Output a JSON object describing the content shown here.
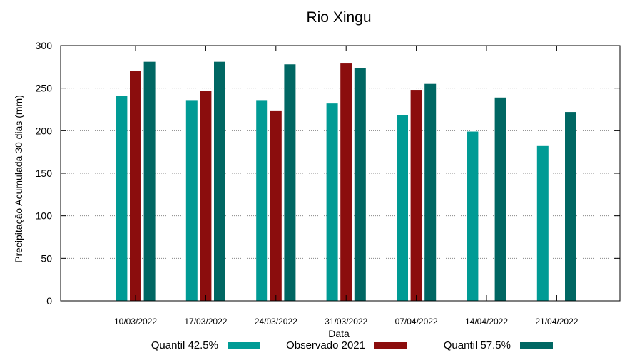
{
  "chart_data": {
    "type": "bar",
    "title": "Rio Xingu",
    "xlabel": "Data",
    "ylabel": "Precipitação Acumulada 30 dias (mm)",
    "ylim": [
      0,
      300
    ],
    "yticks": [
      0,
      50,
      100,
      150,
      200,
      250,
      300
    ],
    "grid": true,
    "legend_position": "bottom",
    "categories": [
      "10/03/2022",
      "17/03/2022",
      "24/03/2022",
      "31/03/2022",
      "07/04/2022",
      "14/04/2022",
      "21/04/2022"
    ],
    "series": [
      {
        "name": "Quantil 42.5%",
        "color": "#009b95",
        "values": [
          241,
          236,
          236,
          232,
          218,
          199,
          182
        ]
      },
      {
        "name": "Observado 2021",
        "color": "#8b0d0d",
        "values": [
          270,
          247,
          223,
          279,
          248,
          null,
          null
        ]
      },
      {
        "name": "Quantil 57.5%",
        "color": "#006763",
        "values": [
          281,
          281,
          278,
          274,
          255,
          239,
          222
        ]
      }
    ]
  }
}
